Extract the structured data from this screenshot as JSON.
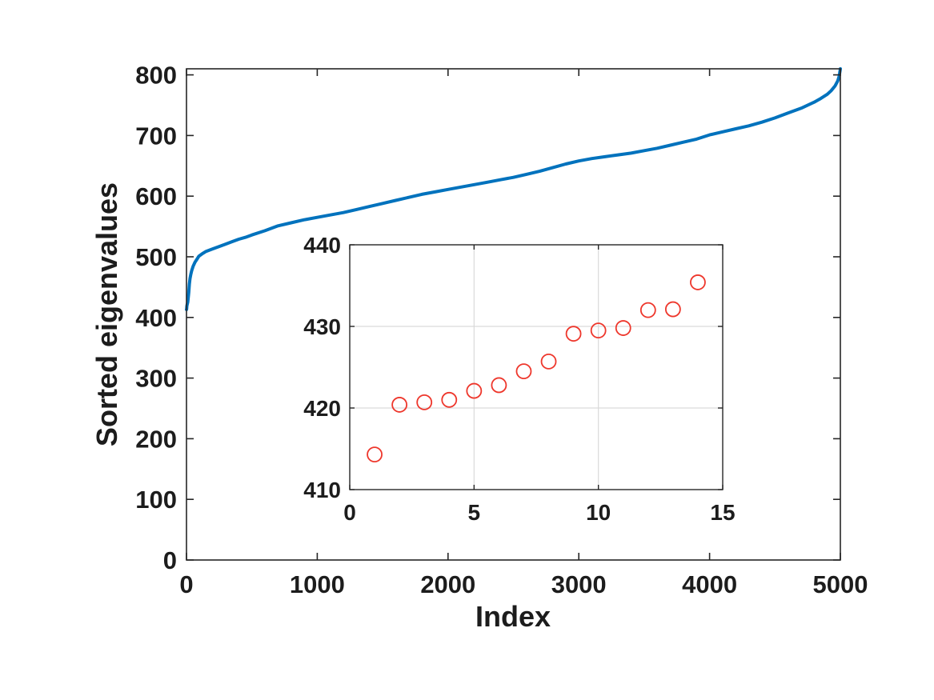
{
  "figure": {
    "background": "#ffffff",
    "axes_color": "#262626",
    "text_color": "#1c1c1c",
    "grid_color": "#d9d9d9"
  },
  "chart_data": [
    {
      "id": "main",
      "type": "line",
      "title": "",
      "xlabel": "Index",
      "ylabel": "Sorted eigenvalues",
      "xlim": [
        0,
        5000
      ],
      "ylim": [
        0,
        810
      ],
      "xticks": [
        0,
        1000,
        2000,
        3000,
        4000,
        5000
      ],
      "yticks": [
        0,
        100,
        200,
        300,
        400,
        500,
        600,
        700,
        800
      ],
      "grid": false,
      "legend": "none",
      "line_color": "#0072bd",
      "line_width": 4,
      "series": [
        {
          "name": "sorted-eigenvalues",
          "x": [
            0,
            1,
            3,
            6,
            10,
            14,
            18,
            22,
            27,
            33,
            40,
            50,
            65,
            80,
            95,
            120,
            150,
            200,
            250,
            300,
            350,
            400,
            450,
            500,
            600,
            700,
            800,
            900,
            1000,
            1100,
            1200,
            1300,
            1400,
            1500,
            1600,
            1700,
            1800,
            1900,
            2000,
            2100,
            2200,
            2300,
            2400,
            2500,
            2600,
            2700,
            2800,
            2900,
            3000,
            3100,
            3200,
            3300,
            3400,
            3500,
            3600,
            3700,
            3800,
            3900,
            4000,
            4100,
            4200,
            4300,
            4400,
            4500,
            4600,
            4700,
            4800,
            4850,
            4900,
            4930,
            4960,
            4980,
            4990,
            5000
          ],
          "y": [
            413,
            414,
            419,
            422,
            425,
            434,
            442,
            455,
            464,
            471,
            477,
            484,
            491,
            496,
            501,
            505,
            509,
            513,
            517,
            521,
            525,
            529,
            532,
            536,
            543,
            551,
            556,
            561,
            565,
            569,
            573,
            578,
            583,
            588,
            593,
            598,
            603,
            607,
            611,
            615,
            619,
            623,
            627,
            631,
            636,
            641,
            647,
            653,
            658,
            662,
            665,
            668,
            671,
            675,
            679,
            684,
            689,
            694,
            701,
            706,
            711,
            716,
            722,
            729,
            737,
            745,
            755,
            761,
            768,
            774,
            782,
            790,
            797,
            810
          ]
        }
      ]
    },
    {
      "id": "inset",
      "type": "scatter",
      "title": "",
      "xlabel": "",
      "ylabel": "",
      "xlim": [
        0,
        15
      ],
      "ylim": [
        410,
        440
      ],
      "xticks": [
        0,
        5,
        10,
        15
      ],
      "yticks": [
        410,
        420,
        430,
        440
      ],
      "grid": true,
      "legend": "none",
      "marker": "circle",
      "marker_color": "#ee372c",
      "marker_radius": 9,
      "x": [
        1,
        2,
        3,
        4,
        5,
        6,
        7,
        8,
        9,
        10,
        11,
        12,
        13,
        14
      ],
      "y": [
        414.3,
        420.4,
        420.7,
        421.0,
        422.1,
        422.8,
        424.5,
        425.7,
        429.1,
        429.5,
        429.8,
        432.0,
        432.1,
        435.4
      ]
    }
  ]
}
